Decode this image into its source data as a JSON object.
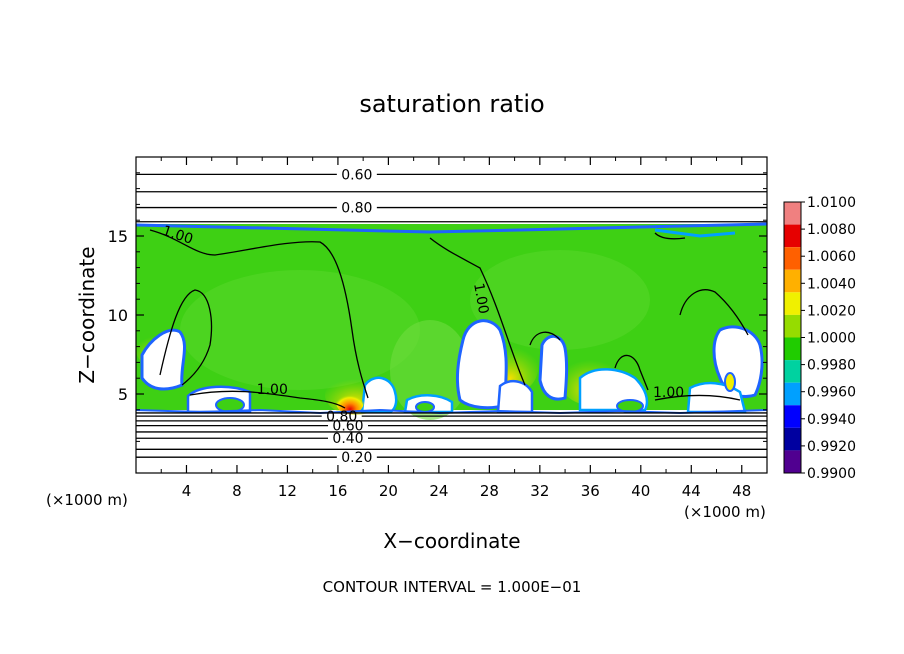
{
  "chart_data": {
    "type": "heatmap",
    "title": "saturation ratio",
    "xlabel": "X−coordinate",
    "ylabel": "Z−coordinate",
    "x_unit_left": "(×1000 m)",
    "x_unit_right": "(×1000 m)",
    "footer": "CONTOUR INTERVAL = 1.000E−01",
    "xlim": [
      0,
      50
    ],
    "ylim": [
      0,
      20
    ],
    "x_ticks": [
      {
        "v": 4,
        "label": "4"
      },
      {
        "v": 8,
        "label": "8"
      },
      {
        "v": 12,
        "label": "12"
      },
      {
        "v": 16,
        "label": "16"
      },
      {
        "v": 20,
        "label": "20"
      },
      {
        "v": 24,
        "label": "24"
      },
      {
        "v": 28,
        "label": "28"
      },
      {
        "v": 32,
        "label": "32"
      },
      {
        "v": 36,
        "label": "36"
      },
      {
        "v": 40,
        "label": "40"
      },
      {
        "v": 44,
        "label": "44"
      },
      {
        "v": 48,
        "label": "48"
      }
    ],
    "y_ticks": [
      {
        "v": 5,
        "label": "5"
      },
      {
        "v": 10,
        "label": "10"
      },
      {
        "v": 15,
        "label": "15"
      }
    ],
    "colorbar": {
      "labels": [
        "1.0100",
        "1.0080",
        "1.0060",
        "1.0040",
        "1.0020",
        "1.0000",
        "0.9980",
        "0.9960",
        "0.9940",
        "0.9920",
        "0.9900"
      ],
      "colors": [
        "#f08080",
        "#e60000",
        "#ff6000",
        "#ffb000",
        "#f0f000",
        "#96dc00",
        "#20cc00",
        "#00d2a0",
        "#00a0ff",
        "#0000ff",
        "#0000a0",
        "#500090"
      ]
    },
    "contour_lines": [
      {
        "level": "0.20",
        "z": 1.0,
        "label": "0.20",
        "label_x": 17.5
      },
      {
        "level": "0.30",
        "z": 1.5
      },
      {
        "level": "0.40",
        "z": 2.2,
        "label": "0.40",
        "label_x": 16.8
      },
      {
        "level": "0.50",
        "z": 2.6
      },
      {
        "level": "0.60",
        "z": 3.0,
        "label": "0.60",
        "label_x": 16.8
      },
      {
        "level": "0.70",
        "z": 3.3
      },
      {
        "level": "0.80",
        "z": 3.6,
        "label": "0.80",
        "label_x": 16.3
      },
      {
        "level": "0.90",
        "z": 3.8
      },
      {
        "level": "0.90",
        "z": 15.9
      },
      {
        "level": "0.80",
        "z": 16.8,
        "label": "0.80",
        "label_x": 17.5
      },
      {
        "level": "0.70",
        "z": 17.8
      },
      {
        "level": "0.60",
        "z": 18.9,
        "label": "0.60",
        "label_x": 17.5
      }
    ],
    "contour_labels_1": [
      {
        "label": "1.00",
        "x": 3.2,
        "z": 14.8
      },
      {
        "label": "1.00",
        "x": 10.8,
        "z": 5.0
      },
      {
        "label": "1.00",
        "x": 27.0,
        "z": 11.0
      },
      {
        "label": "1.00",
        "x": 42.2,
        "z": 4.8
      }
    ]
  }
}
